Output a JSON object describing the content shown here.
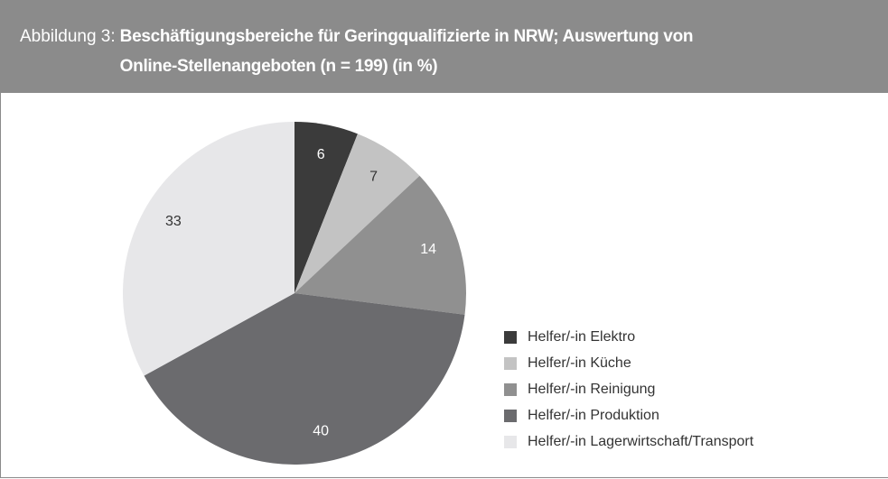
{
  "chart_data": {
    "type": "pie",
    "figure_label": "Abbildung 3:",
    "title": "Beschäftigungsbereiche für Geringqualifizierte in NRW; Auswertung von Online-Stellenangeboten (n = 199) (in %)",
    "categories": [
      "Helfer/-in Elektro",
      "Helfer/-in Küche",
      "Helfer/-in Reinigung",
      "Helfer/-in Produktion",
      "Helfer/-in Lagerwirtschaft/Transport"
    ],
    "values": [
      6,
      7,
      14,
      40,
      33
    ],
    "colors": [
      "#3b3b3b",
      "#c3c3c3",
      "#909090",
      "#6b6b6e",
      "#e7e7e9"
    ]
  }
}
